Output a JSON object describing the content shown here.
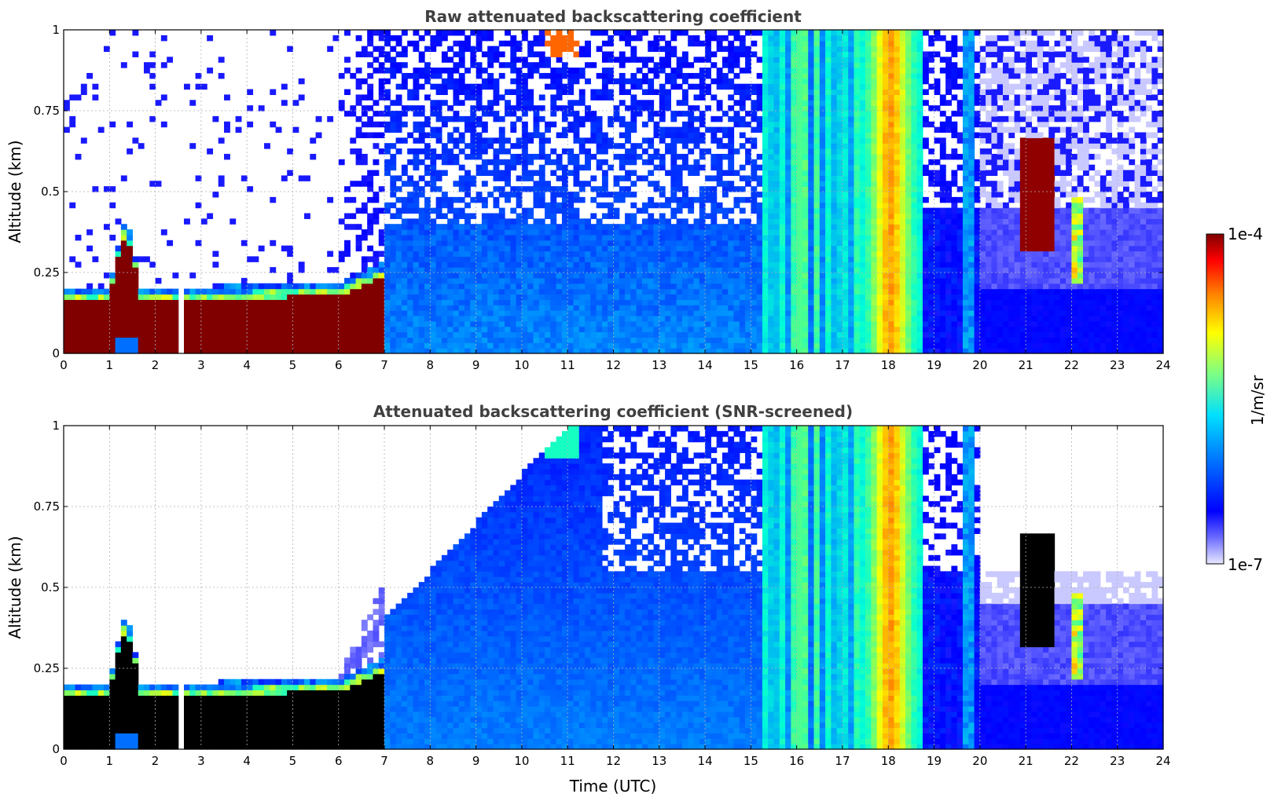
{
  "chart_data": [
    {
      "type": "heatmap",
      "title": "Raw attenuated backscattering coefficient",
      "xlabel": "",
      "ylabel": "Altitude (km)",
      "xlim": [
        0,
        24
      ],
      "ylim": [
        0,
        1
      ],
      "xticks": [
        "0",
        "1",
        "2",
        "3",
        "4",
        "5",
        "6",
        "7",
        "8",
        "9",
        "10",
        "11",
        "12",
        "13",
        "14",
        "15",
        "16",
        "17",
        "18",
        "19",
        "20",
        "21",
        "22",
        "23",
        "24"
      ],
      "yticks": [
        "0",
        "0.25",
        "0.5",
        "0.75",
        "1"
      ],
      "grid": true,
      "screened": false
    },
    {
      "type": "heatmap",
      "title": "Attenuated backscattering coefficient (SNR-screened)",
      "xlabel": "Time (UTC)",
      "ylabel": "Altitude (km)",
      "xlim": [
        0,
        24
      ],
      "ylim": [
        0,
        1
      ],
      "xticks": [
        "0",
        "1",
        "2",
        "3",
        "4",
        "5",
        "6",
        "7",
        "8",
        "9",
        "10",
        "11",
        "12",
        "13",
        "14",
        "15",
        "16",
        "17",
        "18",
        "19",
        "20",
        "21",
        "22",
        "23",
        "24"
      ],
      "yticks": [
        "0",
        "0.25",
        "0.5",
        "0.75",
        "1"
      ],
      "grid": true,
      "screened": true
    }
  ],
  "colorbar": {
    "label": "1/m/sr",
    "max_label": "1e-4",
    "min_label": "1e-7",
    "scale": "log",
    "colormap": "jet"
  },
  "colors": {
    "title": "#404040",
    "saturated_raw": "#800000",
    "saturated_screened": "#000000"
  }
}
